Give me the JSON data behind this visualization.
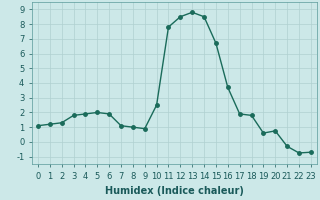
{
  "x": [
    0,
    1,
    2,
    3,
    4,
    5,
    6,
    7,
    8,
    9,
    10,
    11,
    12,
    13,
    14,
    15,
    16,
    17,
    18,
    19,
    20,
    21,
    22,
    23
  ],
  "y": [
    1.1,
    1.2,
    1.3,
    1.8,
    1.9,
    2.0,
    1.9,
    1.1,
    1.0,
    0.9,
    2.5,
    7.8,
    8.5,
    8.8,
    8.5,
    6.7,
    3.7,
    1.9,
    1.8,
    0.6,
    0.75,
    -0.3,
    -0.75,
    -0.7
  ],
  "xlabel": "Humidex (Indice chaleur)",
  "xlim": [
    -0.5,
    23.5
  ],
  "ylim": [
    -1.5,
    9.5
  ],
  "yticks": [
    -1,
    0,
    1,
    2,
    3,
    4,
    5,
    6,
    7,
    8,
    9
  ],
  "xticks": [
    0,
    1,
    2,
    3,
    4,
    5,
    6,
    7,
    8,
    9,
    10,
    11,
    12,
    13,
    14,
    15,
    16,
    17,
    18,
    19,
    20,
    21,
    22,
    23
  ],
  "line_color": "#1a6b5a",
  "marker": "o",
  "marker_size": 2.5,
  "line_width": 1.0,
  "bg_color": "#cce8e8",
  "grid_color": "#b0d0d0",
  "xlabel_fontsize": 7,
  "tick_fontsize": 6
}
